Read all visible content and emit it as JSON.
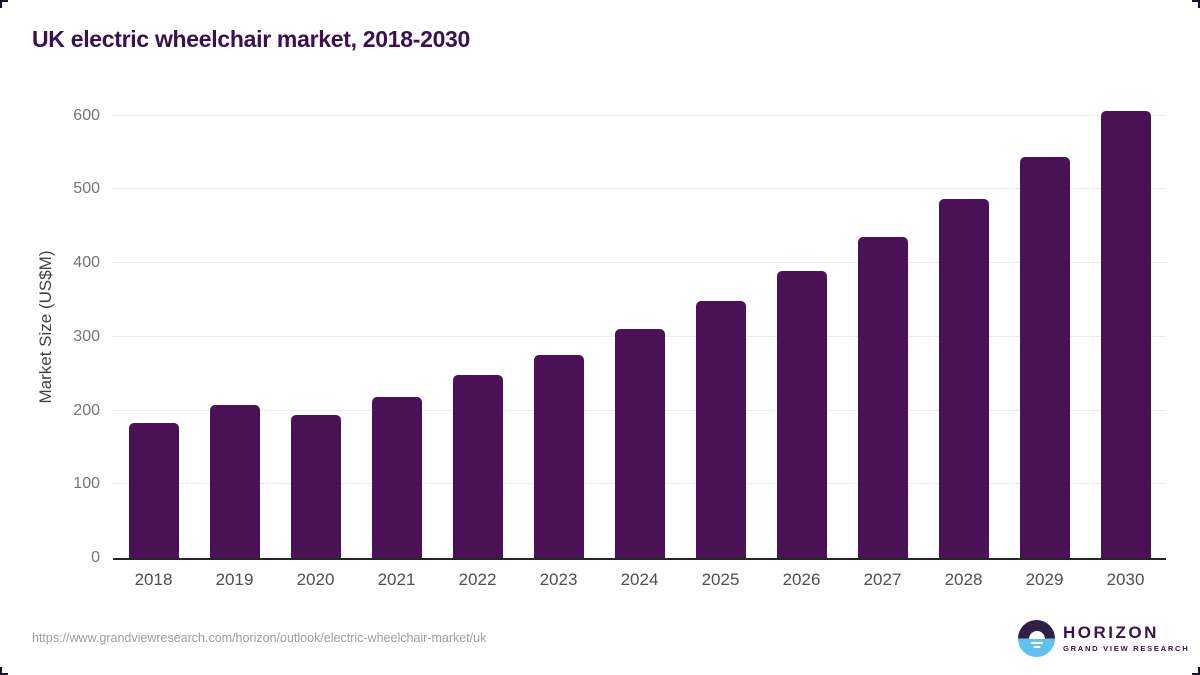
{
  "title": "UK electric wheelchair market, 2018-2030",
  "chart_data": {
    "type": "bar",
    "title": "UK electric wheelchair market, 2018-2030",
    "categories": [
      "2018",
      "2019",
      "2020",
      "2021",
      "2022",
      "2023",
      "2024",
      "2025",
      "2026",
      "2027",
      "2028",
      "2029",
      "2030"
    ],
    "values": [
      183,
      208,
      194,
      219,
      248,
      276,
      310,
      348,
      389,
      435,
      487,
      544,
      606
    ],
    "xlabel": "",
    "ylabel": "Market Size (US$M)",
    "ylim": [
      0,
      600
    ],
    "yticks": [
      0,
      100,
      200,
      300,
      400,
      500,
      600
    ],
    "grid": "horizontal-only",
    "legend": false,
    "bar_color": "#4a1157"
  },
  "colors": {
    "bar": "#4a1157",
    "title_text": "#3a1053",
    "axis_line": "#262626",
    "gridline": "#ececec",
    "ytick_label": "#757575",
    "xtick_label": "#4f4f4f",
    "source_text": "#9e9e9e",
    "logo_circle_top": "#312046",
    "logo_circle_bottom": "#5fc3ee"
  },
  "footer": {
    "source_url": "https://www.grandviewresearch.com/horizon/outlook/electric-wheelchair-market/uk",
    "logo": {
      "name": "HORIZON",
      "subtitle": "GRAND VIEW RESEARCH"
    }
  }
}
